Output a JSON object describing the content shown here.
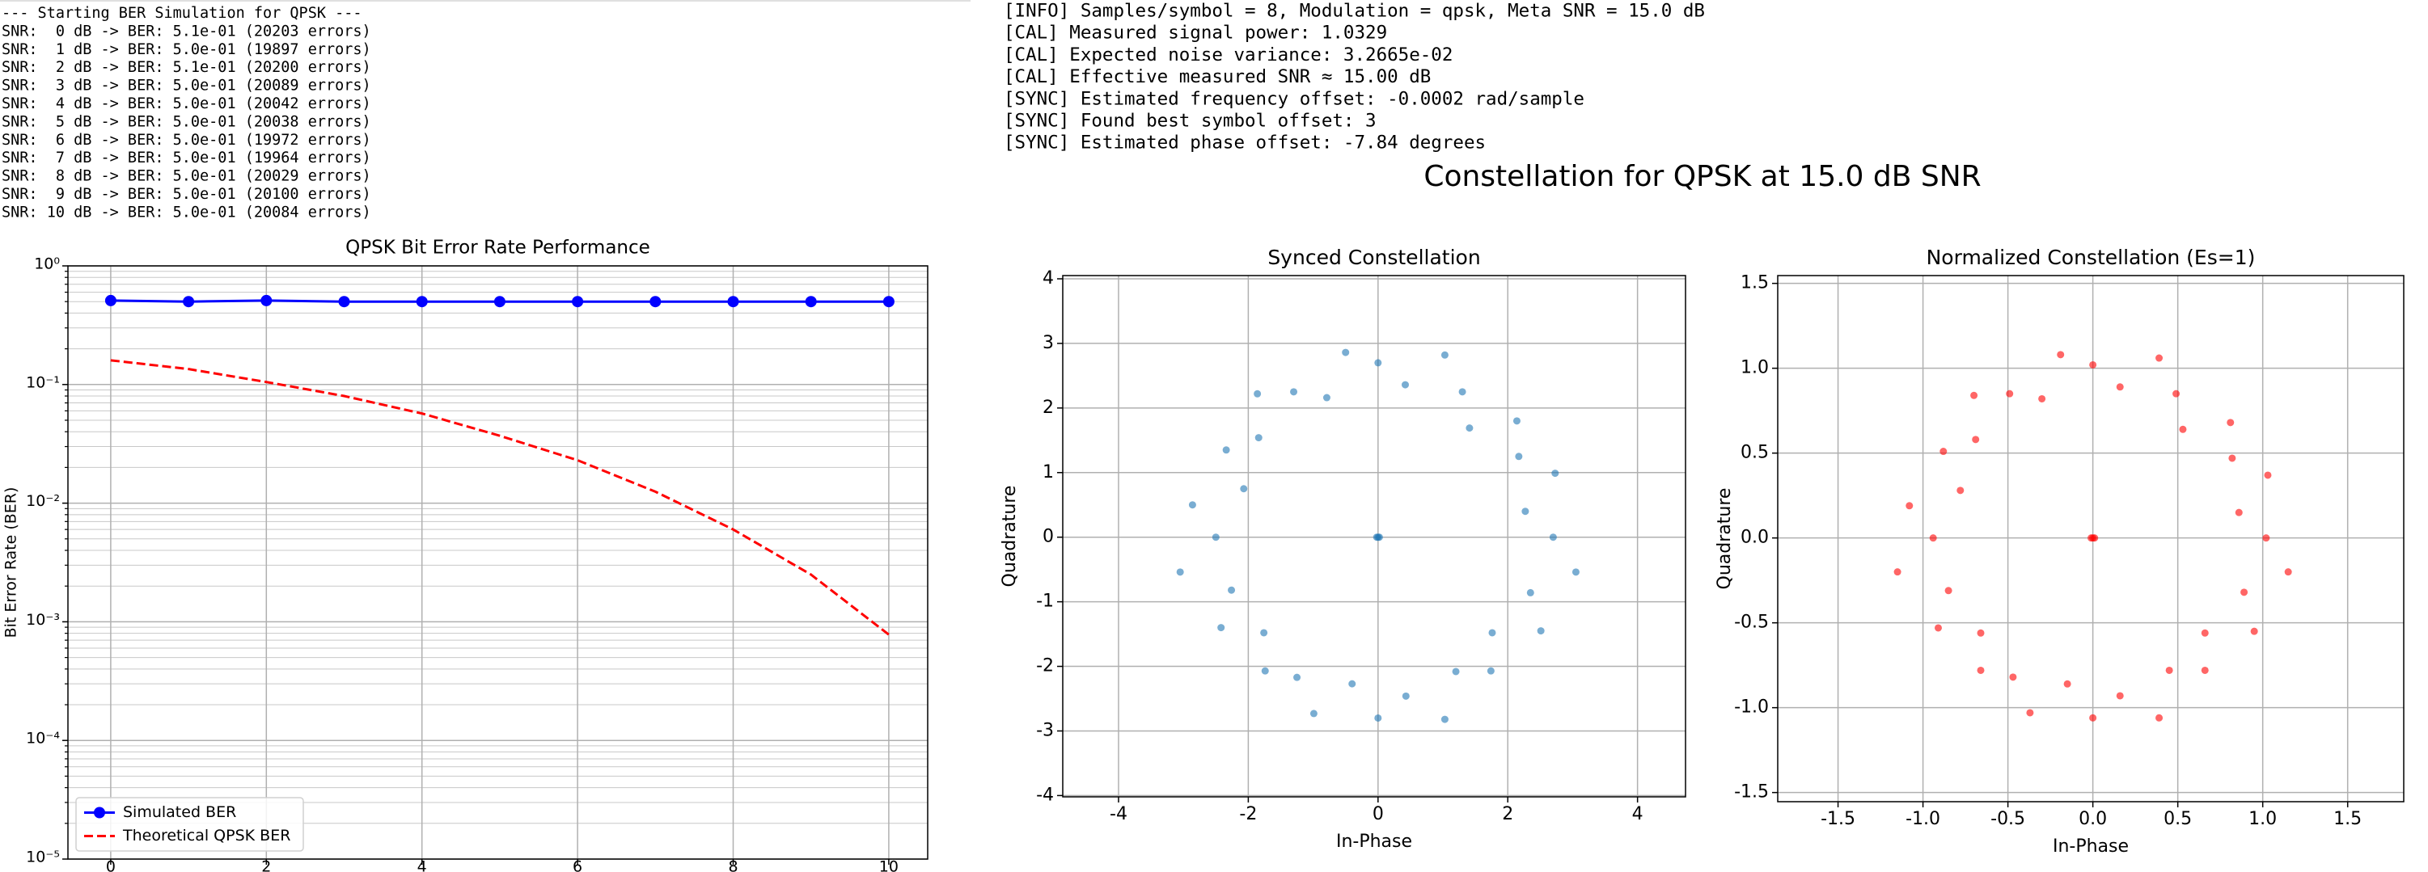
{
  "left_console": {
    "lines": [
      "--- Starting BER Simulation for QPSK ---",
      "SNR:  0 dB -> BER: 5.1e-01 (20203 errors)",
      "SNR:  1 dB -> BER: 5.0e-01 (19897 errors)",
      "SNR:  2 dB -> BER: 5.1e-01 (20200 errors)",
      "SNR:  3 dB -> BER: 5.0e-01 (20089 errors)",
      "SNR:  4 dB -> BER: 5.0e-01 (20042 errors)",
      "SNR:  5 dB -> BER: 5.0e-01 (20038 errors)",
      "SNR:  6 dB -> BER: 5.0e-01 (19972 errors)",
      "SNR:  7 dB -> BER: 5.0e-01 (19964 errors)",
      "SNR:  8 dB -> BER: 5.0e-01 (20029 errors)",
      "SNR:  9 dB -> BER: 5.0e-01 (20100 errors)",
      "SNR: 10 dB -> BER: 5.0e-01 (20084 errors)"
    ]
  },
  "right_console": {
    "lines": [
      "[INFO] Samples/symbol = 8, Modulation = qpsk, Meta SNR = 15.0 dB",
      "[CAL] Measured signal power: 1.0329",
      "[CAL] Expected noise variance: 3.2665e-02",
      "[CAL] Effective measured SNR ≈ 15.00 dB",
      "[SYNC] Estimated frequency offset: -0.0002 rad/sample",
      "[SYNC] Found best symbol offset: 3",
      "[SYNC] Estimated phase offset: -7.84 degrees"
    ]
  },
  "suptitle": "Constellation for QPSK at 15.0 dB SNR",
  "chart_data": [
    {
      "type": "line",
      "title": "QPSK Bit Error Rate Performance",
      "y_label": "Bit Error Rate (BER)",
      "x": [
        0,
        1,
        2,
        3,
        4,
        5,
        6,
        7,
        8,
        9,
        10
      ],
      "series": [
        {
          "name": "Simulated BER",
          "color": "#0000ff",
          "linestyle": "solid",
          "marker": "circle",
          "values": [
            0.51,
            0.5,
            0.51,
            0.5,
            0.5,
            0.5,
            0.5,
            0.5,
            0.5,
            0.5,
            0.5
          ]
        },
        {
          "name": "Theoretical QPSK BER",
          "color": "#ff0000",
          "linestyle": "dashed",
          "values": [
            0.16,
            0.135,
            0.105,
            0.08,
            0.057,
            0.037,
            0.023,
            0.0125,
            0.006,
            0.0025,
            0.00078
          ]
        }
      ],
      "xlim": [
        -0.55,
        10.5
      ],
      "xticks": [
        0,
        2,
        4,
        6,
        8,
        10
      ],
      "ylim": [
        1e-05,
        1
      ],
      "yticks": [
        {
          "value": 1e-05,
          "label": "10⁻⁵"
        },
        {
          "value": 0.0001,
          "label": "10⁻⁴"
        },
        {
          "value": 0.001,
          "label": "10⁻³"
        },
        {
          "value": 0.01,
          "label": "10⁻²"
        },
        {
          "value": 0.1,
          "label": "10⁻¹"
        },
        {
          "value": 1,
          "label": "10⁰"
        }
      ],
      "log_y": true,
      "grid": true,
      "minor_grid": true,
      "legend": "lower left"
    },
    {
      "type": "scatter",
      "title": "Synced Constellation",
      "x_label": "In-Phase",
      "y_label": "Quadrature",
      "color": "#1f77b4",
      "x": [
        2.7,
        2.27,
        2.73,
        2.17,
        2.14,
        1.41,
        1.3,
        1.03,
        0.42,
        0.0,
        -0.5,
        -0.79,
        -1.3,
        -1.86,
        -1.84,
        -2.34,
        -2.07,
        -2.86,
        -2.5,
        -3.05,
        -2.26,
        -2.42,
        -1.76,
        -1.74,
        -1.25,
        -0.99,
        -0.4,
        0.0,
        0.43,
        1.03,
        1.2,
        1.74,
        1.76,
        2.51,
        2.35,
        3.05,
        0.0,
        0.02,
        -0.02
      ],
      "values": [
        0.0,
        0.4,
        0.99,
        1.25,
        1.8,
        1.69,
        2.25,
        2.82,
        2.36,
        2.7,
        2.86,
        2.16,
        2.25,
        2.22,
        1.54,
        1.35,
        0.75,
        0.5,
        0.0,
        -0.54,
        -0.82,
        -1.4,
        -1.48,
        -2.07,
        -2.17,
        -2.73,
        -2.27,
        -2.8,
        -2.46,
        -2.82,
        -2.08,
        -2.07,
        -1.48,
        -1.45,
        -0.86,
        -0.54,
        0.0,
        0.0,
        0.0
      ],
      "xlim": [
        -4.86,
        4.74
      ],
      "xticks": [
        -4,
        -2,
        0,
        2,
        4
      ],
      "ylim": [
        -4.02,
        4.05
      ],
      "yticks": [
        -4,
        -3,
        -2,
        -1,
        0,
        1,
        2,
        3,
        4
      ],
      "grid": true
    },
    {
      "type": "scatter",
      "title": "Normalized Constellation (Es=1)",
      "x_label": "In-Phase",
      "y_label": "Quadrature",
      "color": "#ff0000",
      "x": [
        1.02,
        0.86,
        1.03,
        0.82,
        0.81,
        0.53,
        0.49,
        0.39,
        0.16,
        0.0,
        -0.19,
        -0.3,
        -0.49,
        -0.7,
        -0.69,
        -0.88,
        -0.78,
        -1.08,
        -0.94,
        -1.15,
        -0.85,
        -0.91,
        -0.66,
        -0.66,
        -0.47,
        -0.37,
        -0.15,
        0.0,
        0.16,
        0.39,
        0.45,
        0.66,
        0.66,
        0.95,
        0.89,
        1.15,
        0.0,
        0.01,
        -0.01
      ],
      "values": [
        0.0,
        0.15,
        0.37,
        0.47,
        0.68,
        0.64,
        0.85,
        1.06,
        0.89,
        1.02,
        1.08,
        0.82,
        0.85,
        0.84,
        0.58,
        0.51,
        0.28,
        0.19,
        0.0,
        -0.2,
        -0.31,
        -0.53,
        -0.56,
        -0.78,
        -0.82,
        -1.03,
        -0.86,
        -1.06,
        -0.93,
        -1.06,
        -0.78,
        -0.78,
        -0.56,
        -0.55,
        -0.32,
        -0.2,
        0.0,
        0.0,
        0.0
      ],
      "xlim": [
        -1.855,
        1.83
      ],
      "xticks": [
        -1.5,
        {
          "value": -1,
          "label": "-1.0"
        },
        -0.5,
        {
          "value": 0,
          "label": "0.0"
        },
        0.5,
        {
          "value": 1,
          "label": "1.0"
        },
        1.5
      ],
      "ylim": [
        -1.554,
        1.546
      ],
      "yticks": [
        -1.5,
        {
          "value": -1,
          "label": "-1.0"
        },
        -0.5,
        {
          "value": 0,
          "label": "0.0"
        },
        0.5,
        {
          "value": 1,
          "label": "1.0"
        },
        1.5
      ],
      "grid": true
    }
  ]
}
